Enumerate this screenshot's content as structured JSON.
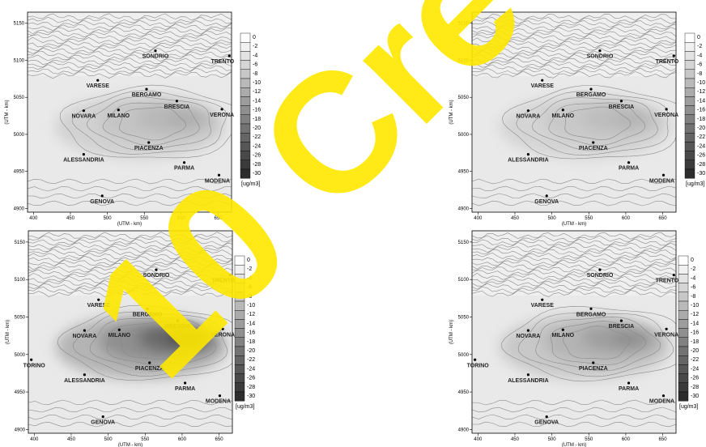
{
  "maps": [
    {
      "id": "top-left",
      "show_torino": false,
      "intensity": 0.35
    },
    {
      "id": "top-right",
      "show_torino": false,
      "intensity": 0.3
    },
    {
      "id": "bottom-left",
      "show_torino": true,
      "intensity": 1.0
    },
    {
      "id": "bottom-right",
      "show_torino": true,
      "intensity": 0.55
    }
  ],
  "axes": {
    "xlabel": "(UTM - km)",
    "ylabel": "(UTM - km)",
    "x_ticks": [
      "400",
      "450",
      "500",
      "550",
      "600",
      "650"
    ],
    "y_ticks": [
      "5150",
      "5100",
      "5050",
      "5000",
      "4950",
      "4900"
    ]
  },
  "cities": [
    {
      "name": "SONDRIO",
      "utm_x": 565,
      "utm_y": 5113
    },
    {
      "name": "TRENTO",
      "utm_x": 665,
      "utm_y": 5106
    },
    {
      "name": "VARESE",
      "utm_x": 487,
      "utm_y": 5073
    },
    {
      "name": "BERGAMO",
      "utm_x": 553,
      "utm_y": 5061
    },
    {
      "name": "BRESCIA",
      "utm_x": 594,
      "utm_y": 5045
    },
    {
      "name": "NOVARA",
      "utm_x": 468,
      "utm_y": 5032
    },
    {
      "name": "MILANO",
      "utm_x": 515,
      "utm_y": 5033
    },
    {
      "name": "VERONA",
      "utm_x": 655,
      "utm_y": 5034
    },
    {
      "name": "PIACENZA",
      "utm_x": 556,
      "utm_y": 4989
    },
    {
      "name": "ALESSANDRIA",
      "utm_x": 468,
      "utm_y": 4973
    },
    {
      "name": "PARMA",
      "utm_x": 604,
      "utm_y": 4962
    },
    {
      "name": "MODENA",
      "utm_x": 651,
      "utm_y": 4945
    },
    {
      "name": "GENOVA",
      "utm_x": 493,
      "utm_y": 4917
    },
    {
      "name": "TORINO",
      "utm_x": 396,
      "utm_y": 4993
    }
  ],
  "legend": {
    "levels": [
      "0",
      "-2",
      "-4",
      "-6",
      "-8",
      "-10",
      "-12",
      "-14",
      "-16",
      "-18",
      "-20",
      "-22",
      "-24",
      "-26",
      "-28",
      "-30"
    ],
    "unit": "[ug/m3]"
  },
  "watermark": {
    "text": "10 Cre",
    "color": "#ffe800"
  }
}
